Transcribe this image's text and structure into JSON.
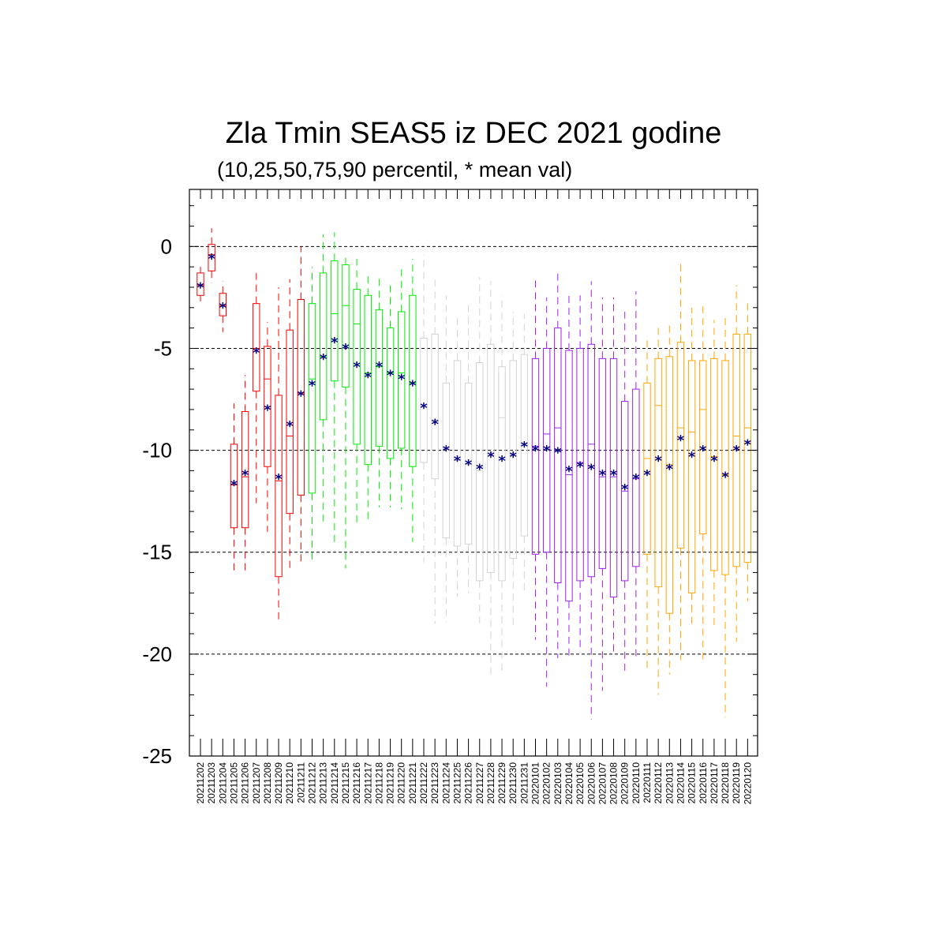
{
  "chart_data": {
    "type": "box",
    "title": "Zla Tmin SEAS5 iz DEC 2021 godine",
    "subtitle": "(10,25,50,75,90 percentil, * mean val)",
    "ylim": [
      -25,
      2.8
    ],
    "yticks": [
      0,
      -5,
      -10,
      -15,
      -20,
      -25
    ],
    "ytick_labels": [
      "0",
      "-5",
      "-10",
      "-15",
      "-20",
      "-25"
    ],
    "grid": "horizontal dashed at major ticks",
    "categories": [
      "20211202",
      "20211203",
      "20211204",
      "20211205",
      "20211206",
      "20211207",
      "20211208",
      "20211209",
      "20211210",
      "20211211",
      "20211212",
      "20211213",
      "20211214",
      "20211215",
      "20211216",
      "20211217",
      "20211218",
      "20211219",
      "20211220",
      "20211221",
      "20211222",
      "20211223",
      "20211224",
      "20211225",
      "20211226",
      "20211227",
      "20211228",
      "20211229",
      "20211230",
      "20211231",
      "20220101",
      "20220102",
      "20220103",
      "20220104",
      "20220105",
      "20220106",
      "20220107",
      "20220108",
      "20220109",
      "20220110",
      "20220111",
      "20220112",
      "20220113",
      "20220114",
      "20220115",
      "20220116",
      "20220117",
      "20220118",
      "20220119",
      "20220120"
    ],
    "colors": [
      "#ff0000",
      "#ff0000",
      "#ff0000",
      "#ff0000",
      "#ff0000",
      "#ff0000",
      "#ff0000",
      "#ff0000",
      "#ff0000",
      "#ff0000",
      "#00ee00",
      "#00ee00",
      "#00ee00",
      "#00ee00",
      "#00ee00",
      "#00ee00",
      "#00ee00",
      "#00ee00",
      "#00ee00",
      "#00ee00",
      "#d3d3d3",
      "#d3d3d3",
      "#d3d3d3",
      "#d3d3d3",
      "#d3d3d3",
      "#d3d3d3",
      "#d3d3d3",
      "#d3d3d3",
      "#d3d3d3",
      "#d3d3d3",
      "#a020f0",
      "#a020f0",
      "#a020f0",
      "#a020f0",
      "#a020f0",
      "#a020f0",
      "#a020f0",
      "#a020f0",
      "#a020f0",
      "#a020f0",
      "#ffa500",
      "#ffa500",
      "#ffa500",
      "#ffa500",
      "#ffa500",
      "#ffa500",
      "#ffa500",
      "#ffa500",
      "#ffa500",
      "#ffa500"
    ],
    "mean_color": "#000080",
    "p10": [
      -2.7,
      -1.8,
      -4.2,
      -16.1,
      -16.1,
      -12.6,
      -14.0,
      -18.5,
      -16.0,
      -15.6,
      -15.5,
      -13.7,
      -14.7,
      -15.8,
      -13.6,
      -13.6,
      -12.8,
      -12.8,
      -12.9,
      -14.5,
      -15.5,
      -18.5,
      -18.4,
      -17.2,
      -17.0,
      -18.5,
      -21.0,
      -21.0,
      -18.8,
      -17.0,
      -19.3,
      -21.6,
      -20.2,
      -20.1,
      -19.9,
      -23.2,
      -21.8,
      -20.0,
      -20.9,
      -20.1,
      -20.8,
      -22.0,
      -21.0,
      -20.3,
      -18.6,
      -20.3,
      -18.7,
      -23.1,
      -19.4,
      -17.4
    ],
    "p25": [
      -2.4,
      -1.2,
      -3.4,
      -13.8,
      -13.8,
      -7.1,
      -10.8,
      -16.2,
      -13.1,
      -12.2,
      -12.1,
      -8.5,
      -6.6,
      -6.9,
      -9.7,
      -10.7,
      -9.8,
      -10.4,
      -9.9,
      -10.8,
      -10.6,
      -11.4,
      -14.3,
      -14.7,
      -14.6,
      -16.4,
      -16.0,
      -16.4,
      -15.3,
      -14.2,
      -15.1,
      -15.0,
      -16.5,
      -17.4,
      -16.4,
      -16.2,
      -15.8,
      -17.2,
      -16.4,
      -15.7,
      -15.1,
      -16.7,
      -18.0,
      -14.8,
      -17.0,
      -14.1,
      -15.9,
      -16.1,
      -15.7,
      -15.5
    ],
    "p50": [
      -1.9,
      -0.4,
      -2.9,
      -11.7,
      -11.3,
      -5.0,
      -6.5,
      -11.5,
      -9.3,
      -7.2,
      -6.5,
      -5.4,
      -3.3,
      -2.9,
      -3.8,
      -6.2,
      -5.9,
      -6.2,
      -6.2,
      -6.7,
      -7.8,
      -8.5,
      -9.9,
      -10.5,
      -10.7,
      -11.0,
      -10.1,
      -8.4,
      -10.2,
      -9.7,
      -9.8,
      -9.2,
      -8.9,
      -11.2,
      -10.6,
      -9.7,
      -11.3,
      -11.3,
      -12.0,
      -11.4,
      -10.4,
      -7.8,
      -10.7,
      -8.9,
      -9.1,
      -8.0,
      -10.3,
      -11.2,
      -9.3,
      -8.9
    ],
    "p75": [
      -1.3,
      0.1,
      -2.3,
      -9.7,
      -8.1,
      -2.8,
      -4.9,
      -7.3,
      -4.1,
      -2.6,
      -2.8,
      -1.3,
      -0.7,
      -0.9,
      -2.1,
      -2.4,
      -3.1,
      -4.0,
      -3.2,
      -2.4,
      -4.5,
      -4.3,
      -6.7,
      -5.6,
      -6.7,
      -5.7,
      -4.8,
      -5.9,
      -5.6,
      -5.3,
      -5.5,
      -5.0,
      -4.0,
      -5.1,
      -5.0,
      -4.8,
      -5.5,
      -5.5,
      -7.6,
      -7.0,
      -6.7,
      -5.5,
      -5.4,
      -4.7,
      -5.6,
      -5.6,
      -5.5,
      -5.6,
      -4.3,
      -4.3
    ],
    "p90": [
      -1.0,
      0.9,
      -1.7,
      -7.7,
      -6.3,
      -1.3,
      -3.7,
      -2.0,
      -1.6,
      0.0,
      -1.0,
      0.6,
      0.7,
      -0.4,
      -0.6,
      -1.3,
      -1.4,
      -1.8,
      -1.0,
      -0.6,
      -0.4,
      -1.6,
      -2.4,
      -3.5,
      -2.7,
      -1.5,
      -1.7,
      -2.4,
      -3.2,
      -3.3,
      -1.5,
      -2.5,
      -1.2,
      -2.4,
      -2.4,
      -1.7,
      -2.5,
      -2.5,
      -3.2,
      -2.2,
      -4.4,
      -3.9,
      -3.7,
      -0.8,
      -3.0,
      -2.8,
      -3.6,
      -3.5,
      -1.9,
      -2.8
    ],
    "mean": [
      -1.9,
      -0.5,
      -2.9,
      -11.6,
      -11.1,
      -5.1,
      -7.9,
      -11.3,
      -8.7,
      -7.2,
      -6.7,
      -5.4,
      -4.6,
      -4.9,
      -5.8,
      -6.3,
      -5.8,
      -6.2,
      -6.4,
      -6.7,
      -7.8,
      -8.6,
      -9.9,
      -10.4,
      -10.6,
      -10.8,
      -10.2,
      -10.4,
      -10.2,
      -9.7,
      -9.9,
      -9.9,
      -10.0,
      -10.9,
      -10.7,
      -10.8,
      -11.1,
      -11.1,
      -11.8,
      -11.3,
      -11.1,
      -10.4,
      -10.8,
      -9.4,
      -10.2,
      -9.9,
      -10.4,
      -11.2,
      -9.9,
      -9.6
    ]
  }
}
